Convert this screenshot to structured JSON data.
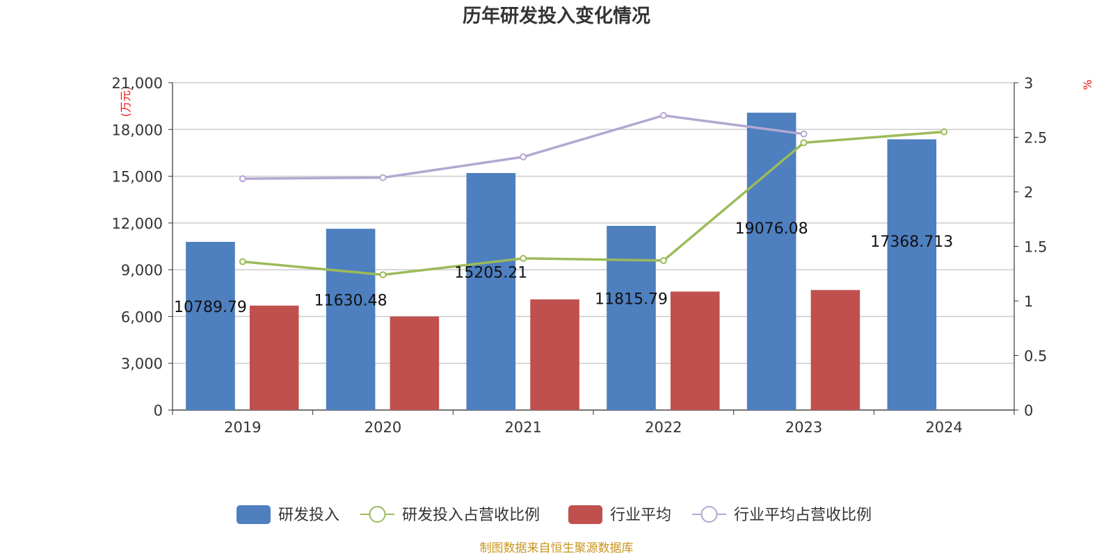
{
  "chart_data": {
    "type": "bar",
    "title": "历年研发投入变化情况",
    "categories": [
      "2019",
      "2020",
      "2021",
      "2022",
      "2023",
      "2024"
    ],
    "y_left": {
      "unit": "(万元)",
      "min": 0,
      "max": 21000,
      "ticks": [
        "0",
        "3,000",
        "6,000",
        "9,000",
        "12,000",
        "15,000",
        "18,000",
        "21,000"
      ]
    },
    "y_right": {
      "unit": "%",
      "min": 0,
      "max": 3,
      "ticks": [
        "0",
        "0.5",
        "1",
        "1.5",
        "2",
        "2.5",
        "3"
      ]
    },
    "grid": true,
    "legend_position": "bottom",
    "series": [
      {
        "name": "研发投入",
        "kind": "bar",
        "axis": "left",
        "color": "#4e7fbf",
        "values": [
          10789.79,
          11630.48,
          15205.21,
          11815.79,
          19076.08,
          17368.713
        ],
        "labels": [
          "10789.79",
          "11630.48",
          "15205.21",
          "11815.79",
          "19076.08",
          "17368.713"
        ]
      },
      {
        "name": "研发投入占营收比例",
        "kind": "line",
        "axis": "right",
        "color": "#9bbb59",
        "values": [
          1.36,
          1.24,
          1.39,
          1.37,
          2.45,
          2.55
        ]
      },
      {
        "name": "行业平均",
        "kind": "bar",
        "axis": "left",
        "color": "#c0504d",
        "values": [
          6700,
          6000,
          7100,
          7600,
          7700,
          null
        ]
      },
      {
        "name": "行业平均占营收比例",
        "kind": "line",
        "axis": "right",
        "color": "#b3a7d1",
        "values": [
          2.12,
          2.13,
          2.32,
          2.7,
          2.53,
          null
        ]
      }
    ],
    "source": "制图数据来自恒生聚源数据库"
  }
}
